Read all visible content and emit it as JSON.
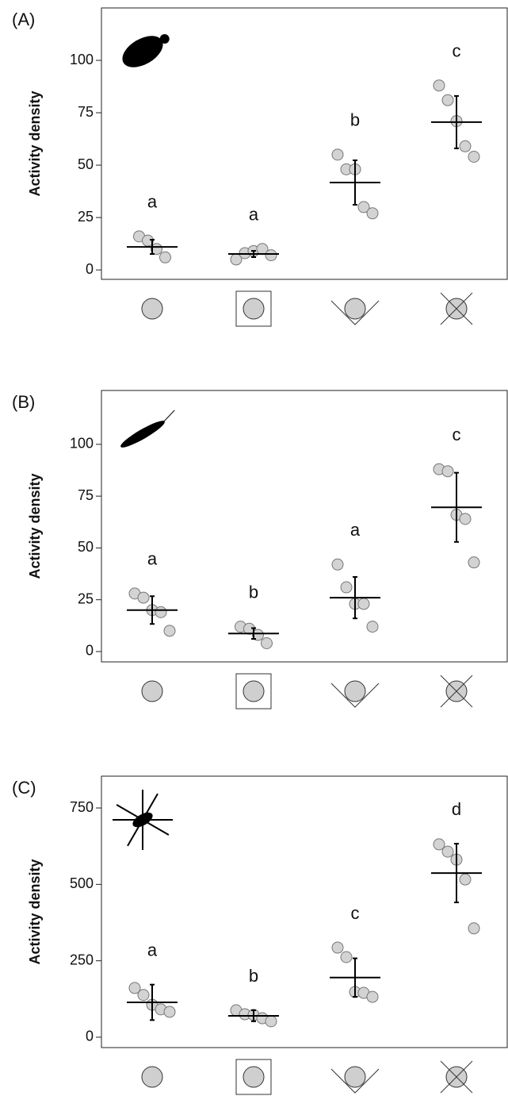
{
  "chart_data": [
    {
      "type": "strip",
      "panel_label": "(A)",
      "ylabel": "Activity density",
      "ylim": [
        -4.5,
        125
      ],
      "yticks": [
        0,
        25,
        50,
        75,
        100
      ],
      "groups": [
        {
          "points": [
            16,
            14,
            10,
            6
          ],
          "mean": 11,
          "error": 3.4,
          "letter": "a"
        },
        {
          "points": [
            5,
            8,
            9,
            10,
            7
          ],
          "mean": 7.6,
          "error": 1.5,
          "letter": "a"
        },
        {
          "points": [
            55,
            48,
            48,
            30,
            27
          ],
          "mean": 41.7,
          "error": 10.6,
          "letter": "b"
        },
        {
          "points": [
            88,
            81,
            71,
            59,
            54
          ],
          "mean": 70.5,
          "error": 12.5,
          "letter": "c"
        }
      ]
    },
    {
      "type": "strip",
      "panel_label": "(B)",
      "ylabel": "Activity density",
      "ylim": [
        -5,
        126
      ],
      "yticks": [
        0,
        25,
        50,
        75,
        100
      ],
      "groups": [
        {
          "points": [
            28,
            26,
            20,
            19,
            10
          ],
          "mean": 20,
          "error": 6.7,
          "letter": "a"
        },
        {
          "points": [
            12,
            11,
            8,
            4
          ],
          "mean": 8.7,
          "error": 2.6,
          "letter": "b"
        },
        {
          "points": [
            42,
            31,
            23,
            23,
            12
          ],
          "mean": 26,
          "error": 10,
          "letter": "a"
        },
        {
          "points": [
            88,
            87,
            66,
            64,
            43
          ],
          "mean": 69.6,
          "error": 16.7,
          "letter": "c"
        }
      ]
    },
    {
      "type": "strip",
      "panel_label": "(C)",
      "ylabel": "Activity density",
      "ylim": [
        -34,
        854
      ],
      "yticks": [
        0,
        250,
        500,
        750
      ],
      "groups": [
        {
          "points": [
            161,
            138,
            106,
            91,
            83
          ],
          "mean": 114,
          "error": 58,
          "letter": "a"
        },
        {
          "points": [
            88,
            75,
            73,
            62,
            52
          ],
          "mean": 70,
          "error": 18,
          "letter": "b"
        },
        {
          "points": [
            293,
            262,
            148,
            145,
            132
          ],
          "mean": 195,
          "error": 63,
          "letter": "c"
        },
        {
          "points": [
            631,
            607,
            581,
            516,
            356
          ],
          "mean": 537,
          "error": 96,
          "letter": "d"
        }
      ]
    }
  ]
}
